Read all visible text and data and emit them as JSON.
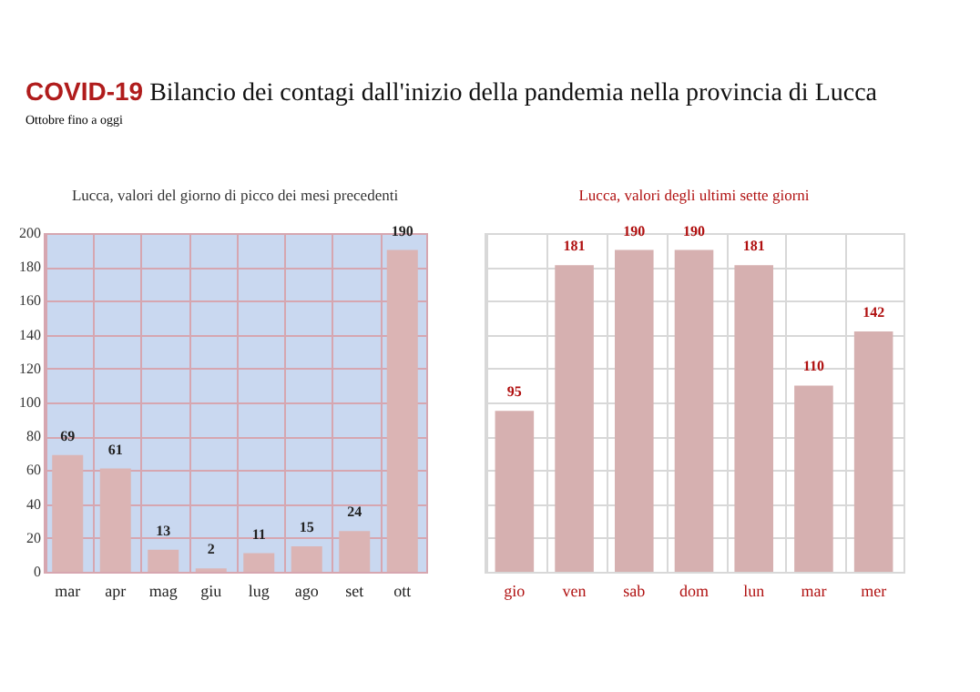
{
  "chart_data": [
    {
      "type": "other",
      "title": "COVID-19 Bilancio dei contagi dall'inizio della pandemia nella provincia di Lucca",
      "subtitle": "Ottobre fino a oggi"
    },
    {
      "type": "bar",
      "title": "Lucca, valori del giorno di picco dei mesi precedenti",
      "categories": [
        "mar",
        "apr",
        "mag",
        "giu",
        "lug",
        "ago",
        "set",
        "ott"
      ],
      "values": [
        69,
        61,
        13,
        2,
        11,
        15,
        24,
        190
      ],
      "color": "#dbb4b4",
      "ylim": [
        0,
        200
      ],
      "yticks": [
        0,
        20,
        40,
        60,
        80,
        100,
        120,
        140,
        160,
        180,
        200
      ],
      "grid": true,
      "data_labels": true
    },
    {
      "type": "bar",
      "title": "Lucca, valori degli ultimi sette giorni",
      "categories": [
        "gio",
        "ven",
        "sab",
        "dom",
        "lun",
        "mar",
        "mer"
      ],
      "values": [
        95,
        181,
        190,
        190,
        181,
        110,
        142
      ],
      "color": "#d6b0b0",
      "ylim": [
        0,
        200
      ],
      "yticks": [
        0,
        20,
        40,
        60,
        80,
        100,
        120,
        140,
        160,
        180,
        200
      ],
      "grid": true,
      "data_labels": true,
      "tick_labels": "x"
    }
  ]
}
